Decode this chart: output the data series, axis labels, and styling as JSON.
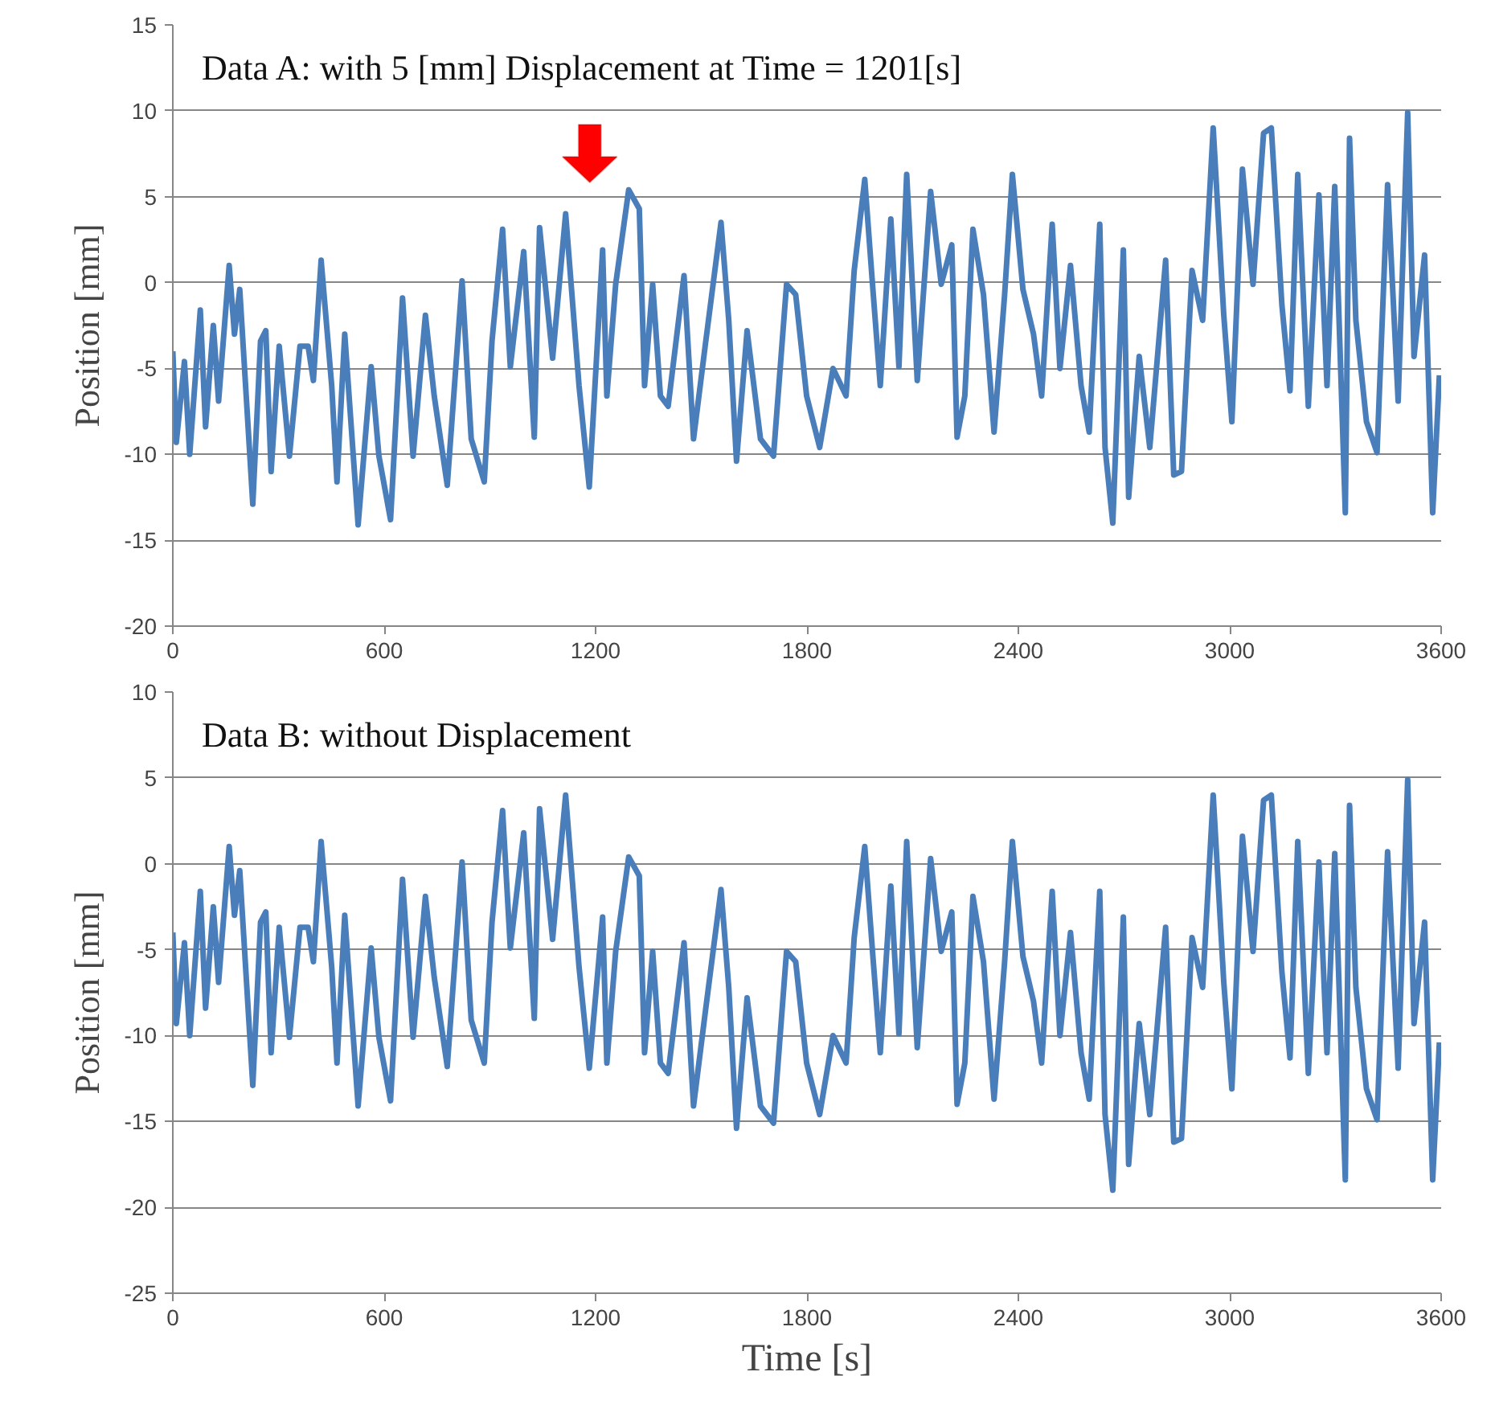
{
  "chart_data": [
    {
      "type": "line",
      "title": "Data A: with 5 [mm] Displacement at Time = 1201[s]",
      "ylabel": "Position [mm]",
      "xlim": [
        0,
        3600
      ],
      "xticks": [
        0,
        600,
        1200,
        1800,
        2400,
        3000,
        3600
      ],
      "ylim": [
        -20,
        15
      ],
      "yticks": [
        -20,
        -15,
        -10,
        -5,
        0,
        5,
        10,
        15
      ],
      "grid": "y",
      "line_style": "solid",
      "series": [
        {
          "color": "#4a7ebb",
          "x": [
            0,
            10,
            33,
            48,
            78,
            93,
            115,
            130,
            160,
            175,
            190,
            227,
            249,
            264,
            279,
            302,
            331,
            361,
            384,
            399,
            421,
            451,
            466,
            488,
            526,
            563,
            585,
            618,
            652,
            682,
            717,
            742,
            779,
            821,
            847,
            884,
            906,
            936,
            958,
            996,
            1026,
            1041,
            1078,
            1115,
            1153,
            1182,
            1220,
            1232,
            1257,
            1294,
            1324,
            1339,
            1362,
            1384,
            1406,
            1451,
            1478,
            1511,
            1556,
            1578,
            1600,
            1630,
            1668,
            1705,
            1742,
            1768,
            1799,
            1836,
            1874,
            1911,
            1934,
            1964,
            1986,
            2008,
            2038,
            2061,
            2083,
            2113,
            2151,
            2181,
            2211,
            2226,
            2248,
            2271,
            2301,
            2331,
            2361,
            2383,
            2413,
            2443,
            2466,
            2496,
            2518,
            2548,
            2578,
            2601,
            2631,
            2646,
            2668,
            2698,
            2713,
            2743,
            2773,
            2818,
            2841,
            2863,
            2893,
            2923,
            2953,
            2983,
            3006,
            3036,
            3066,
            3096,
            3118,
            3148,
            3171,
            3193,
            3223,
            3253,
            3276,
            3298,
            3328,
            3340,
            3358,
            3388,
            3418,
            3448,
            3478,
            3505,
            3523,
            3553,
            3576,
            3595
          ],
          "values": [
            -4,
            -9.3,
            -4.6,
            -10,
            -1.6,
            -8.4,
            -2.5,
            -6.9,
            1,
            -3,
            -0.4,
            -12.9,
            -3.4,
            -2.8,
            -11,
            -3.7,
            -10.1,
            -3.7,
            -3.7,
            -5.7,
            1.3,
            -6,
            -11.6,
            -3,
            -14.1,
            -4.9,
            -10.1,
            -13.8,
            -0.9,
            -10.1,
            -1.9,
            -6.6,
            -11.8,
            0.1,
            -9.1,
            -11.6,
            -3.4,
            3.1,
            -4.9,
            1.8,
            -9,
            3.2,
            -4.4,
            4,
            -6,
            -11.9,
            1.9,
            -6.6,
            -0.1,
            5.4,
            4.3,
            -6,
            -0.1,
            -6.6,
            -7.2,
            0.4,
            -9.1,
            -3.7,
            3.5,
            -2.2,
            -10.4,
            -2.8,
            -9.1,
            -10.1,
            -0.1,
            -0.7,
            -6.6,
            -9.6,
            -5,
            -6.6,
            0.7,
            6,
            -0.1,
            -6,
            3.7,
            -4.9,
            6.3,
            -5.7,
            5.3,
            -0.1,
            2.2,
            -9,
            -6.6,
            3.1,
            -0.7,
            -8.7,
            -0.7,
            6.3,
            -0.4,
            -3,
            -6.6,
            3.4,
            -5,
            1,
            -6,
            -8.7,
            3.4,
            -9.6,
            -14,
            1.9,
            -12.5,
            -4.3,
            -9.6,
            1.3,
            -11.2,
            -11,
            0.7,
            -2.2,
            9,
            -1.9,
            -8.1,
            6.6,
            -0.1,
            8.7,
            9,
            -1.3,
            -6.3,
            6.3,
            -7.2,
            5.1,
            -6,
            5.6,
            -13.4,
            8.4,
            -2.2,
            -8.1,
            -9.9,
            5.7,
            -6.9,
            9.9,
            -4.3,
            1.6,
            -13.4,
            -5.4
          ]
        }
      ]
    },
    {
      "type": "line",
      "title": "Data B: without Displacement",
      "xlabel": "Time [s]",
      "ylabel": "Position [mm]",
      "xlim": [
        0,
        3600
      ],
      "xticks": [
        0,
        600,
        1200,
        1800,
        2400,
        3000,
        3600
      ],
      "ylim": [
        -25,
        10
      ],
      "yticks": [
        -25,
        -20,
        -15,
        -10,
        -5,
        0,
        5,
        10
      ],
      "grid": "y",
      "line_style": "solid",
      "series": [
        {
          "color": "#4a7ebb",
          "x": [
            0,
            10,
            33,
            48,
            78,
            93,
            115,
            130,
            160,
            175,
            190,
            227,
            249,
            264,
            279,
            302,
            331,
            361,
            384,
            399,
            421,
            451,
            466,
            488,
            526,
            563,
            585,
            618,
            652,
            682,
            717,
            742,
            779,
            821,
            847,
            884,
            906,
            936,
            958,
            996,
            1026,
            1041,
            1078,
            1115,
            1153,
            1182,
            1220,
            1232,
            1257,
            1294,
            1324,
            1339,
            1362,
            1384,
            1406,
            1451,
            1478,
            1511,
            1556,
            1578,
            1600,
            1630,
            1668,
            1705,
            1742,
            1768,
            1799,
            1836,
            1874,
            1911,
            1934,
            1964,
            1986,
            2008,
            2038,
            2061,
            2083,
            2113,
            2151,
            2181,
            2211,
            2226,
            2248,
            2271,
            2301,
            2331,
            2361,
            2383,
            2413,
            2443,
            2466,
            2496,
            2518,
            2548,
            2578,
            2601,
            2631,
            2646,
            2668,
            2698,
            2713,
            2743,
            2773,
            2818,
            2841,
            2863,
            2893,
            2923,
            2953,
            2983,
            3006,
            3036,
            3066,
            3096,
            3118,
            3148,
            3171,
            3193,
            3223,
            3253,
            3276,
            3298,
            3328,
            3340,
            3358,
            3388,
            3418,
            3448,
            3478,
            3505,
            3523,
            3553,
            3576,
            3595
          ],
          "values": [
            -4,
            -9.3,
            -4.6,
            -10,
            -1.6,
            -8.4,
            -2.5,
            -6.9,
            1,
            -3,
            -0.4,
            -12.9,
            -3.4,
            -2.8,
            -11,
            -3.7,
            -10.1,
            -3.7,
            -3.7,
            -5.7,
            1.3,
            -6,
            -11.6,
            -3,
            -14.1,
            -4.9,
            -10.1,
            -13.8,
            -0.9,
            -10.1,
            -1.9,
            -6.6,
            -11.8,
            0.1,
            -9.1,
            -11.6,
            -3.4,
            3.1,
            -4.9,
            1.8,
            -9,
            3.2,
            -4.4,
            4,
            -6,
            -11.9,
            -3.1,
            -11.6,
            -5.1,
            0.4,
            -0.7,
            -11,
            -5.1,
            -11.6,
            -12.2,
            -4.6,
            -14.1,
            -8.7,
            -1.5,
            -7.2,
            -15.4,
            -7.8,
            -14.1,
            -15.1,
            -5.1,
            -5.7,
            -11.6,
            -14.6,
            -10,
            -11.6,
            -4.3,
            1,
            -5.1,
            -11,
            -1.3,
            -9.9,
            1.3,
            -10.7,
            0.3,
            -5.1,
            -2.8,
            -14,
            -11.6,
            -1.9,
            -5.7,
            -13.7,
            -5.7,
            1.3,
            -5.4,
            -8,
            -11.6,
            -1.6,
            -10,
            -4,
            -11,
            -13.7,
            -1.6,
            -14.6,
            -19,
            -3.1,
            -17.5,
            -9.3,
            -14.6,
            -3.7,
            -16.2,
            -16,
            -4.3,
            -7.2,
            4,
            -6.9,
            -13.1,
            1.6,
            -5.1,
            3.7,
            4,
            -6.3,
            -11.3,
            1.3,
            -12.2,
            0.1,
            -11,
            0.6,
            -18.4,
            3.4,
            -7.2,
            -13.1,
            -14.9,
            0.7,
            -11.9,
            4.9,
            -9.3,
            -3.4,
            -18.4,
            -10.4
          ]
        }
      ]
    }
  ]
}
